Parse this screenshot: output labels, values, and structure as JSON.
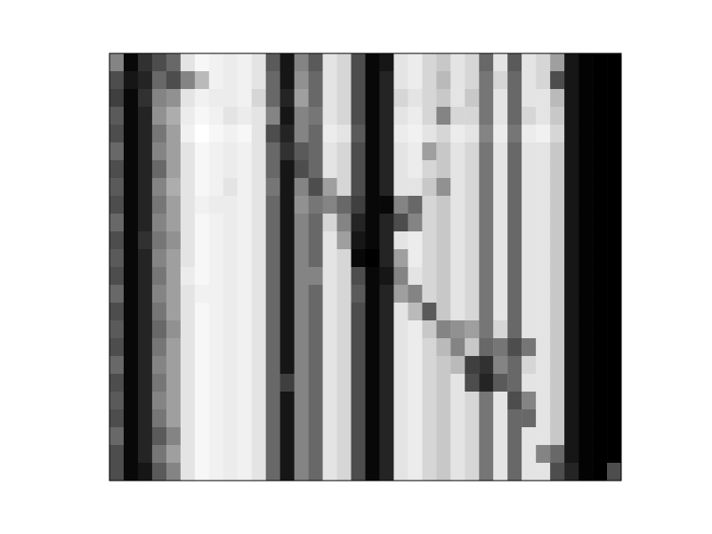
{
  "chart_data": {
    "type": "heatmap",
    "color": "gray",
    "tick_labels": false,
    "cells": [
      [
        0.5,
        0.05,
        0.2,
        0.3,
        0.4,
        0.85,
        0.92,
        0.9,
        0.88,
        0.9,
        0.85,
        0.35,
        0.1,
        0.5,
        0.35,
        0.85,
        0.8,
        0.3,
        0.05,
        0.1,
        0.85,
        0.88,
        0.8,
        0.75,
        0.85,
        0.8,
        0.4,
        0.85,
        0.35,
        0.85,
        0.8,
        0.6,
        0.1,
        0.03,
        0.02,
        0.02
      ],
      [
        0.3,
        0.1,
        0.15,
        0.4,
        0.3,
        0.5,
        0.7,
        0.9,
        0.88,
        0.9,
        0.85,
        0.4,
        0.1,
        0.55,
        0.4,
        0.85,
        0.8,
        0.3,
        0.05,
        0.15,
        0.85,
        0.88,
        0.8,
        0.7,
        0.85,
        0.8,
        0.45,
        0.8,
        0.4,
        0.85,
        0.8,
        0.3,
        0.1,
        0.03,
        0.02,
        0.02
      ],
      [
        0.25,
        0.05,
        0.2,
        0.5,
        0.55,
        0.85,
        0.9,
        0.88,
        0.88,
        0.9,
        0.8,
        0.4,
        0.15,
        0.6,
        0.4,
        0.85,
        0.8,
        0.3,
        0.05,
        0.15,
        0.8,
        0.85,
        0.8,
        0.75,
        0.85,
        0.75,
        0.45,
        0.85,
        0.4,
        0.85,
        0.85,
        0.7,
        0.1,
        0.03,
        0.02,
        0.02
      ],
      [
        0.35,
        0.05,
        0.15,
        0.55,
        0.65,
        0.88,
        0.92,
        0.9,
        0.85,
        0.88,
        0.85,
        0.5,
        0.1,
        0.5,
        0.45,
        0.85,
        0.8,
        0.3,
        0.05,
        0.15,
        0.85,
        0.88,
        0.8,
        0.5,
        0.8,
        0.8,
        0.45,
        0.85,
        0.4,
        0.8,
        0.85,
        0.75,
        0.1,
        0.03,
        0.02,
        0.02
      ],
      [
        0.3,
        0.05,
        0.15,
        0.45,
        0.6,
        0.9,
        0.95,
        0.92,
        0.9,
        0.92,
        0.85,
        0.3,
        0.15,
        0.5,
        0.4,
        0.88,
        0.85,
        0.35,
        0.05,
        0.15,
        0.88,
        0.9,
        0.85,
        0.8,
        0.88,
        0.85,
        0.5,
        0.88,
        0.45,
        0.88,
        0.9,
        0.8,
        0.1,
        0.03,
        0.02,
        0.02
      ],
      [
        0.4,
        0.05,
        0.15,
        0.5,
        0.6,
        0.85,
        0.92,
        0.9,
        0.88,
        0.9,
        0.85,
        0.4,
        0.2,
        0.35,
        0.4,
        0.85,
        0.8,
        0.3,
        0.05,
        0.15,
        0.85,
        0.88,
        0.6,
        0.75,
        0.85,
        0.8,
        0.45,
        0.85,
        0.4,
        0.85,
        0.85,
        0.75,
        0.1,
        0.03,
        0.02,
        0.02
      ],
      [
        0.3,
        0.05,
        0.15,
        0.4,
        0.6,
        0.85,
        0.92,
        0.9,
        0.88,
        0.9,
        0.85,
        0.4,
        0.1,
        0.3,
        0.4,
        0.85,
        0.8,
        0.3,
        0.05,
        0.15,
        0.85,
        0.88,
        0.8,
        0.75,
        0.85,
        0.8,
        0.45,
        0.85,
        0.4,
        0.85,
        0.85,
        0.75,
        0.1,
        0.03,
        0.02,
        0.02
      ],
      [
        0.35,
        0.05,
        0.15,
        0.5,
        0.65,
        0.85,
        0.92,
        0.9,
        0.85,
        0.9,
        0.85,
        0.45,
        0.1,
        0.5,
        0.3,
        0.6,
        0.8,
        0.3,
        0.05,
        0.15,
        0.85,
        0.85,
        0.75,
        0.55,
        0.85,
        0.8,
        0.45,
        0.85,
        0.4,
        0.85,
        0.85,
        0.75,
        0.1,
        0.03,
        0.02,
        0.02
      ],
      [
        0.3,
        0.05,
        0.15,
        0.45,
        0.6,
        0.85,
        0.9,
        0.88,
        0.88,
        0.9,
        0.85,
        0.4,
        0.1,
        0.55,
        0.45,
        0.5,
        0.4,
        0.25,
        0.05,
        0.05,
        0.5,
        0.4,
        0.8,
        0.75,
        0.85,
        0.8,
        0.45,
        0.85,
        0.4,
        0.85,
        0.85,
        0.75,
        0.1,
        0.03,
        0.02,
        0.02
      ],
      [
        0.4,
        0.05,
        0.15,
        0.5,
        0.6,
        0.85,
        0.92,
        0.9,
        0.88,
        0.9,
        0.85,
        0.4,
        0.1,
        0.5,
        0.4,
        0.8,
        0.5,
        0.15,
        0.05,
        0.15,
        0.3,
        0.5,
        0.8,
        0.75,
        0.85,
        0.8,
        0.45,
        0.85,
        0.4,
        0.85,
        0.85,
        0.75,
        0.1,
        0.03,
        0.02,
        0.02
      ],
      [
        0.3,
        0.05,
        0.2,
        0.45,
        0.55,
        0.85,
        0.92,
        0.9,
        0.88,
        0.9,
        0.85,
        0.4,
        0.1,
        0.5,
        0.4,
        0.85,
        0.6,
        0.1,
        0.05,
        0.15,
        0.85,
        0.88,
        0.8,
        0.75,
        0.85,
        0.8,
        0.45,
        0.85,
        0.4,
        0.85,
        0.85,
        0.75,
        0.1,
        0.03,
        0.02,
        0.02
      ],
      [
        0.35,
        0.05,
        0.15,
        0.5,
        0.6,
        0.85,
        0.92,
        0.9,
        0.88,
        0.9,
        0.85,
        0.4,
        0.1,
        0.5,
        0.4,
        0.85,
        0.8,
        0.05,
        0.02,
        0.15,
        0.6,
        0.88,
        0.8,
        0.75,
        0.85,
        0.8,
        0.45,
        0.85,
        0.4,
        0.85,
        0.85,
        0.75,
        0.1,
        0.03,
        0.02,
        0.02
      ],
      [
        0.3,
        0.05,
        0.15,
        0.45,
        0.6,
        0.88,
        0.92,
        0.9,
        0.88,
        0.9,
        0.85,
        0.4,
        0.1,
        0.5,
        0.5,
        0.85,
        0.8,
        0.3,
        0.05,
        0.1,
        0.5,
        0.85,
        0.8,
        0.75,
        0.85,
        0.8,
        0.45,
        0.85,
        0.4,
        0.85,
        0.85,
        0.75,
        0.1,
        0.03,
        0.02,
        0.02
      ],
      [
        0.4,
        0.05,
        0.15,
        0.5,
        0.6,
        0.85,
        0.9,
        0.9,
        0.88,
        0.9,
        0.85,
        0.4,
        0.1,
        0.5,
        0.4,
        0.85,
        0.8,
        0.35,
        0.05,
        0.15,
        0.6,
        0.5,
        0.8,
        0.75,
        0.85,
        0.8,
        0.45,
        0.85,
        0.4,
        0.85,
        0.85,
        0.75,
        0.1,
        0.03,
        0.02,
        0.02
      ],
      [
        0.3,
        0.05,
        0.15,
        0.45,
        0.6,
        0.85,
        0.92,
        0.9,
        0.88,
        0.9,
        0.85,
        0.4,
        0.1,
        0.5,
        0.4,
        0.85,
        0.8,
        0.3,
        0.05,
        0.15,
        0.85,
        0.7,
        0.35,
        0.75,
        0.85,
        0.8,
        0.45,
        0.85,
        0.4,
        0.85,
        0.85,
        0.75,
        0.1,
        0.03,
        0.02,
        0.02
      ],
      [
        0.35,
        0.05,
        0.15,
        0.4,
        0.55,
        0.85,
        0.92,
        0.9,
        0.88,
        0.9,
        0.85,
        0.4,
        0.1,
        0.5,
        0.4,
        0.85,
        0.8,
        0.3,
        0.05,
        0.15,
        0.85,
        0.88,
        0.75,
        0.5,
        0.55,
        0.6,
        0.45,
        0.8,
        0.4,
        0.85,
        0.85,
        0.75,
        0.1,
        0.03,
        0.02,
        0.02
      ],
      [
        0.3,
        0.05,
        0.15,
        0.45,
        0.6,
        0.85,
        0.92,
        0.9,
        0.88,
        0.9,
        0.85,
        0.4,
        0.1,
        0.5,
        0.4,
        0.85,
        0.8,
        0.3,
        0.05,
        0.15,
        0.85,
        0.88,
        0.8,
        0.7,
        0.5,
        0.75,
        0.4,
        0.45,
        0.3,
        0.45,
        0.85,
        0.75,
        0.1,
        0.03,
        0.02,
        0.02
      ],
      [
        0.4,
        0.05,
        0.15,
        0.5,
        0.6,
        0.85,
        0.92,
        0.9,
        0.88,
        0.9,
        0.85,
        0.4,
        0.1,
        0.5,
        0.4,
        0.85,
        0.8,
        0.3,
        0.05,
        0.15,
        0.85,
        0.88,
        0.8,
        0.75,
        0.7,
        0.25,
        0.2,
        0.5,
        0.4,
        0.8,
        0.85,
        0.75,
        0.1,
        0.03,
        0.02,
        0.02
      ],
      [
        0.3,
        0.05,
        0.15,
        0.45,
        0.6,
        0.85,
        0.92,
        0.9,
        0.88,
        0.9,
        0.85,
        0.4,
        0.25,
        0.5,
        0.4,
        0.85,
        0.8,
        0.3,
        0.05,
        0.15,
        0.85,
        0.88,
        0.8,
        0.75,
        0.85,
        0.3,
        0.15,
        0.35,
        0.4,
        0.85,
        0.85,
        0.75,
        0.1,
        0.03,
        0.02,
        0.02
      ],
      [
        0.35,
        0.05,
        0.15,
        0.5,
        0.6,
        0.85,
        0.92,
        0.9,
        0.88,
        0.9,
        0.85,
        0.4,
        0.1,
        0.5,
        0.4,
        0.85,
        0.8,
        0.3,
        0.05,
        0.15,
        0.85,
        0.88,
        0.8,
        0.75,
        0.85,
        0.8,
        0.45,
        0.85,
        0.3,
        0.5,
        0.85,
        0.75,
        0.1,
        0.03,
        0.02,
        0.02
      ],
      [
        0.3,
        0.05,
        0.15,
        0.45,
        0.6,
        0.85,
        0.92,
        0.9,
        0.88,
        0.9,
        0.85,
        0.4,
        0.1,
        0.5,
        0.4,
        0.85,
        0.8,
        0.3,
        0.05,
        0.15,
        0.85,
        0.88,
        0.8,
        0.75,
        0.85,
        0.8,
        0.45,
        0.85,
        0.4,
        0.4,
        0.85,
        0.75,
        0.1,
        0.03,
        0.02,
        0.02
      ],
      [
        0.4,
        0.05,
        0.15,
        0.35,
        0.5,
        0.85,
        0.92,
        0.9,
        0.88,
        0.9,
        0.85,
        0.4,
        0.1,
        0.5,
        0.4,
        0.85,
        0.8,
        0.3,
        0.05,
        0.15,
        0.85,
        0.88,
        0.8,
        0.75,
        0.85,
        0.8,
        0.45,
        0.85,
        0.4,
        0.85,
        0.85,
        0.75,
        0.1,
        0.03,
        0.02,
        0.02
      ],
      [
        0.3,
        0.05,
        0.15,
        0.45,
        0.6,
        0.85,
        0.92,
        0.9,
        0.88,
        0.9,
        0.85,
        0.4,
        0.1,
        0.5,
        0.4,
        0.85,
        0.8,
        0.3,
        0.05,
        0.15,
        0.85,
        0.88,
        0.8,
        0.75,
        0.85,
        0.8,
        0.45,
        0.85,
        0.4,
        0.85,
        0.5,
        0.4,
        0.1,
        0.03,
        0.02,
        0.02
      ],
      [
        0.3,
        0.05,
        0.1,
        0.35,
        0.5,
        0.85,
        0.92,
        0.9,
        0.88,
        0.9,
        0.85,
        0.4,
        0.1,
        0.5,
        0.4,
        0.85,
        0.8,
        0.3,
        0.05,
        0.15,
        0.85,
        0.88,
        0.8,
        0.75,
        0.85,
        0.8,
        0.45,
        0.85,
        0.4,
        0.85,
        0.85,
        0.3,
        0.15,
        0.03,
        0.02,
        0.3
      ]
    ]
  }
}
